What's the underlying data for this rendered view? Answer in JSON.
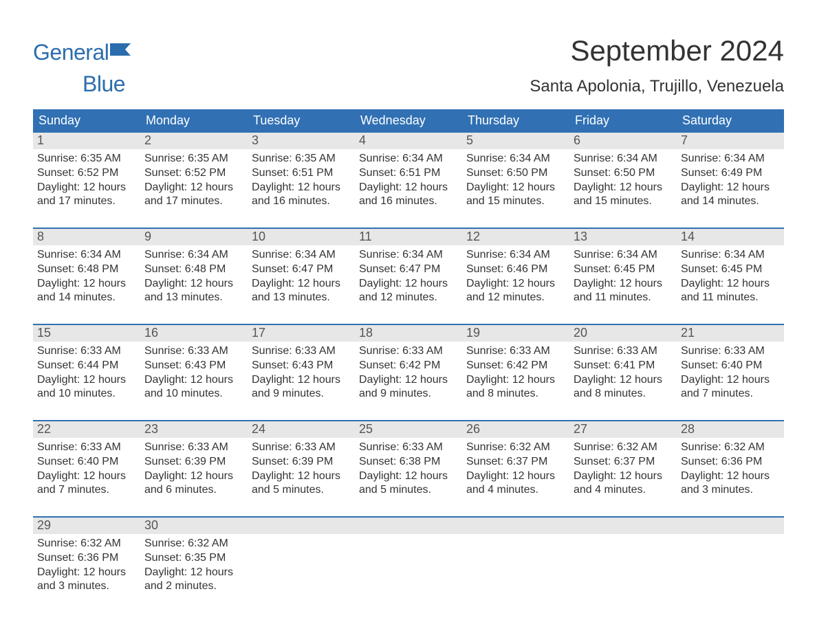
{
  "logo": {
    "word1": "General",
    "word2": "Blue",
    "color": "#2b6dad"
  },
  "title": "September 2024",
  "location": "Santa Apolonia, Trujillo, Venezuela",
  "colors": {
    "header_bg": "#3070b3",
    "header_fg": "#ffffff",
    "daynum_bg": "#e7e7e7",
    "daynum_fg": "#555555",
    "week_border": "#3070b3",
    "text": "#333333",
    "background": "#ffffff"
  },
  "typography": {
    "title_fontsize": 42,
    "location_fontsize": 24,
    "dow_fontsize": 18,
    "body_fontsize": 16
  },
  "dow": [
    "Sunday",
    "Monday",
    "Tuesday",
    "Wednesday",
    "Thursday",
    "Friday",
    "Saturday"
  ],
  "labels": {
    "sunrise": "Sunrise:",
    "sunset": "Sunset:",
    "daylight": "Daylight:"
  },
  "weeks": [
    [
      {
        "n": "1",
        "sunrise": "6:35 AM",
        "sunset": "6:52 PM",
        "daylight_l1": "12 hours",
        "daylight_l2": "and 17 minutes."
      },
      {
        "n": "2",
        "sunrise": "6:35 AM",
        "sunset": "6:52 PM",
        "daylight_l1": "12 hours",
        "daylight_l2": "and 17 minutes."
      },
      {
        "n": "3",
        "sunrise": "6:35 AM",
        "sunset": "6:51 PM",
        "daylight_l1": "12 hours",
        "daylight_l2": "and 16 minutes."
      },
      {
        "n": "4",
        "sunrise": "6:34 AM",
        "sunset": "6:51 PM",
        "daylight_l1": "12 hours",
        "daylight_l2": "and 16 minutes."
      },
      {
        "n": "5",
        "sunrise": "6:34 AM",
        "sunset": "6:50 PM",
        "daylight_l1": "12 hours",
        "daylight_l2": "and 15 minutes."
      },
      {
        "n": "6",
        "sunrise": "6:34 AM",
        "sunset": "6:50 PM",
        "daylight_l1": "12 hours",
        "daylight_l2": "and 15 minutes."
      },
      {
        "n": "7",
        "sunrise": "6:34 AM",
        "sunset": "6:49 PM",
        "daylight_l1": "12 hours",
        "daylight_l2": "and 14 minutes."
      }
    ],
    [
      {
        "n": "8",
        "sunrise": "6:34 AM",
        "sunset": "6:48 PM",
        "daylight_l1": "12 hours",
        "daylight_l2": "and 14 minutes."
      },
      {
        "n": "9",
        "sunrise": "6:34 AM",
        "sunset": "6:48 PM",
        "daylight_l1": "12 hours",
        "daylight_l2": "and 13 minutes."
      },
      {
        "n": "10",
        "sunrise": "6:34 AM",
        "sunset": "6:47 PM",
        "daylight_l1": "12 hours",
        "daylight_l2": "and 13 minutes."
      },
      {
        "n": "11",
        "sunrise": "6:34 AM",
        "sunset": "6:47 PM",
        "daylight_l1": "12 hours",
        "daylight_l2": "and 12 minutes."
      },
      {
        "n": "12",
        "sunrise": "6:34 AM",
        "sunset": "6:46 PM",
        "daylight_l1": "12 hours",
        "daylight_l2": "and 12 minutes."
      },
      {
        "n": "13",
        "sunrise": "6:34 AM",
        "sunset": "6:45 PM",
        "daylight_l1": "12 hours",
        "daylight_l2": "and 11 minutes."
      },
      {
        "n": "14",
        "sunrise": "6:34 AM",
        "sunset": "6:45 PM",
        "daylight_l1": "12 hours",
        "daylight_l2": "and 11 minutes."
      }
    ],
    [
      {
        "n": "15",
        "sunrise": "6:33 AM",
        "sunset": "6:44 PM",
        "daylight_l1": "12 hours",
        "daylight_l2": "and 10 minutes."
      },
      {
        "n": "16",
        "sunrise": "6:33 AM",
        "sunset": "6:43 PM",
        "daylight_l1": "12 hours",
        "daylight_l2": "and 10 minutes."
      },
      {
        "n": "17",
        "sunrise": "6:33 AM",
        "sunset": "6:43 PM",
        "daylight_l1": "12 hours",
        "daylight_l2": "and 9 minutes."
      },
      {
        "n": "18",
        "sunrise": "6:33 AM",
        "sunset": "6:42 PM",
        "daylight_l1": "12 hours",
        "daylight_l2": "and 9 minutes."
      },
      {
        "n": "19",
        "sunrise": "6:33 AM",
        "sunset": "6:42 PM",
        "daylight_l1": "12 hours",
        "daylight_l2": "and 8 minutes."
      },
      {
        "n": "20",
        "sunrise": "6:33 AM",
        "sunset": "6:41 PM",
        "daylight_l1": "12 hours",
        "daylight_l2": "and 8 minutes."
      },
      {
        "n": "21",
        "sunrise": "6:33 AM",
        "sunset": "6:40 PM",
        "daylight_l1": "12 hours",
        "daylight_l2": "and 7 minutes."
      }
    ],
    [
      {
        "n": "22",
        "sunrise": "6:33 AM",
        "sunset": "6:40 PM",
        "daylight_l1": "12 hours",
        "daylight_l2": "and 7 minutes."
      },
      {
        "n": "23",
        "sunrise": "6:33 AM",
        "sunset": "6:39 PM",
        "daylight_l1": "12 hours",
        "daylight_l2": "and 6 minutes."
      },
      {
        "n": "24",
        "sunrise": "6:33 AM",
        "sunset": "6:39 PM",
        "daylight_l1": "12 hours",
        "daylight_l2": "and 5 minutes."
      },
      {
        "n": "25",
        "sunrise": "6:33 AM",
        "sunset": "6:38 PM",
        "daylight_l1": "12 hours",
        "daylight_l2": "and 5 minutes."
      },
      {
        "n": "26",
        "sunrise": "6:32 AM",
        "sunset": "6:37 PM",
        "daylight_l1": "12 hours",
        "daylight_l2": "and 4 minutes."
      },
      {
        "n": "27",
        "sunrise": "6:32 AM",
        "sunset": "6:37 PM",
        "daylight_l1": "12 hours",
        "daylight_l2": "and 4 minutes."
      },
      {
        "n": "28",
        "sunrise": "6:32 AM",
        "sunset": "6:36 PM",
        "daylight_l1": "12 hours",
        "daylight_l2": "and 3 minutes."
      }
    ],
    [
      {
        "n": "29",
        "sunrise": "6:32 AM",
        "sunset": "6:36 PM",
        "daylight_l1": "12 hours",
        "daylight_l2": "and 3 minutes."
      },
      {
        "n": "30",
        "sunrise": "6:32 AM",
        "sunset": "6:35 PM",
        "daylight_l1": "12 hours",
        "daylight_l2": "and 2 minutes."
      },
      {
        "empty": true
      },
      {
        "empty": true
      },
      {
        "empty": true
      },
      {
        "empty": true
      },
      {
        "empty": true
      }
    ]
  ]
}
